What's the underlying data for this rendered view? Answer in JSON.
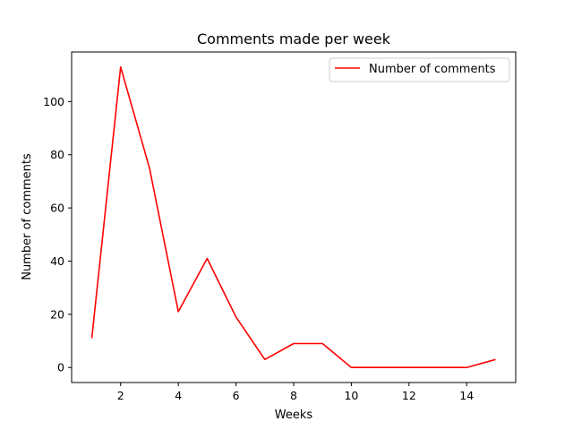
{
  "chart_data": {
    "type": "line",
    "title": "Comments made per week",
    "xlabel": "Weeks",
    "ylabel": "Number of comments",
    "xlim": [
      0.3,
      15.7
    ],
    "ylim": [
      -5.65,
      118.65
    ],
    "xticks": [
      2,
      4,
      6,
      8,
      10,
      12,
      14
    ],
    "yticks": [
      0,
      20,
      40,
      60,
      80,
      100
    ],
    "grid": false,
    "legend_position": "top-right",
    "series": [
      {
        "name": "Number of comments",
        "color": "#ff0000",
        "x": [
          1,
          2,
          3,
          4,
          5,
          6,
          7,
          8,
          9,
          10,
          11,
          12,
          13,
          14,
          15
        ],
        "y": [
          11,
          113,
          75,
          21,
          41,
          19,
          3,
          9,
          9,
          0,
          0,
          0,
          0,
          0,
          3
        ]
      }
    ]
  }
}
